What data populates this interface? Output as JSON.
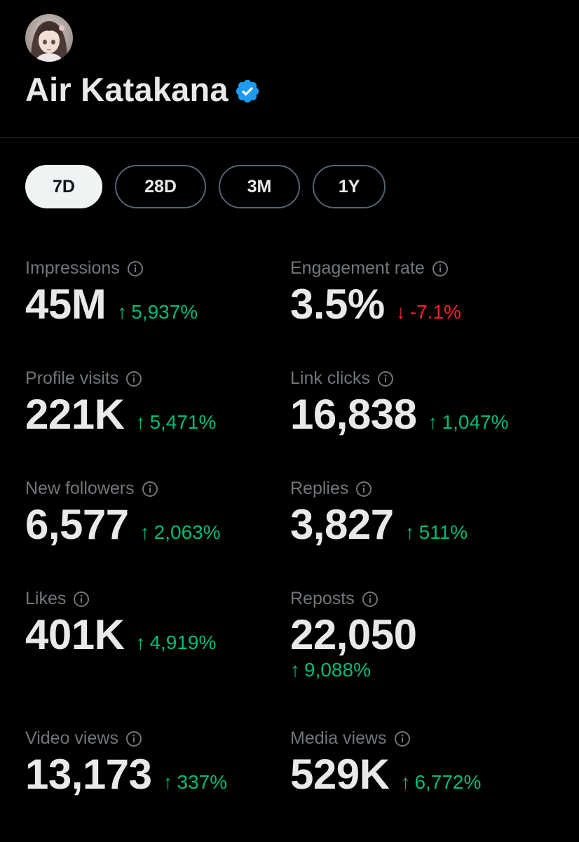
{
  "profile": {
    "name": "Air Katakana",
    "verified": true
  },
  "tabs": [
    {
      "label": "7D",
      "active": true
    },
    {
      "label": "28D",
      "active": false
    },
    {
      "label": "3M",
      "active": false
    },
    {
      "label": "1Y",
      "active": false
    }
  ],
  "colors": {
    "up": "#00ba7c",
    "down": "#f4212e",
    "verified": "#1d9bf0"
  },
  "metrics": {
    "impressions": {
      "label": "Impressions",
      "value": "45M",
      "change": "5,937%",
      "direction": "up"
    },
    "engagement_rate": {
      "label": "Engagement rate",
      "value": "3.5%",
      "change": "-7.1%",
      "direction": "down"
    },
    "profile_visits": {
      "label": "Profile visits",
      "value": "221K",
      "change": "5,471%",
      "direction": "up"
    },
    "link_clicks": {
      "label": "Link clicks",
      "value": "16,838",
      "change": "1,047%",
      "direction": "up"
    },
    "new_followers": {
      "label": "New followers",
      "value": "6,577",
      "change": "2,063%",
      "direction": "up"
    },
    "replies": {
      "label": "Replies",
      "value": "3,827",
      "change": "511%",
      "direction": "up"
    },
    "likes": {
      "label": "Likes",
      "value": "401K",
      "change": "4,919%",
      "direction": "up"
    },
    "reposts": {
      "label": "Reposts",
      "value": "22,050",
      "change": "9,088%",
      "direction": "up"
    },
    "video_views": {
      "label": "Video views",
      "value": "13,173",
      "change": "337%",
      "direction": "up"
    },
    "media_views": {
      "label": "Media views",
      "value": "529K",
      "change": "6,772%",
      "direction": "up"
    }
  },
  "glyphs": {
    "arrow_up": "↑",
    "arrow_down": "↓"
  }
}
